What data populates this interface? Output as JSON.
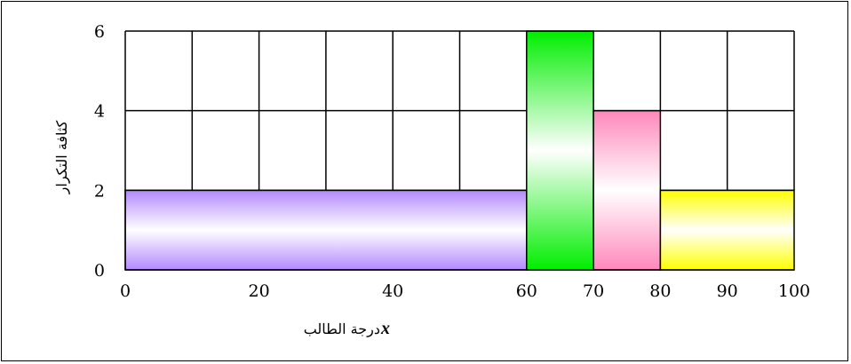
{
  "chart_data": {
    "type": "histogram",
    "xlabel": "درجة الطالب",
    "xlabel_variable": "x",
    "ylabel": "كثافة التكرار",
    "xlim": [
      0,
      100
    ],
    "ylim": [
      0,
      6
    ],
    "x_ticks": [
      "0",
      "20",
      "40",
      "60",
      "70",
      "80",
      "90",
      "100"
    ],
    "y_ticks": [
      "0",
      "2",
      "4",
      "6"
    ],
    "x_tick_values": [
      0,
      20,
      40,
      60,
      70,
      80,
      90,
      100
    ],
    "y_tick_values": [
      0,
      2,
      4,
      6
    ],
    "grid": true,
    "grid_x_values": [
      10,
      20,
      30,
      40,
      50,
      60,
      70,
      80,
      90,
      100
    ],
    "grid_y_values": [
      2,
      4,
      6
    ],
    "bars": [
      {
        "x0": 0,
        "x1": 60,
        "value": 2,
        "color": "#B388FF"
      },
      {
        "x0": 60,
        "x1": 70,
        "value": 6,
        "color": "#00EE00"
      },
      {
        "x0": 70,
        "x1": 80,
        "value": 4,
        "color": "#FF88BB"
      },
      {
        "x0": 80,
        "x1": 100,
        "value": 2,
        "color": "#FFFF00"
      }
    ]
  }
}
